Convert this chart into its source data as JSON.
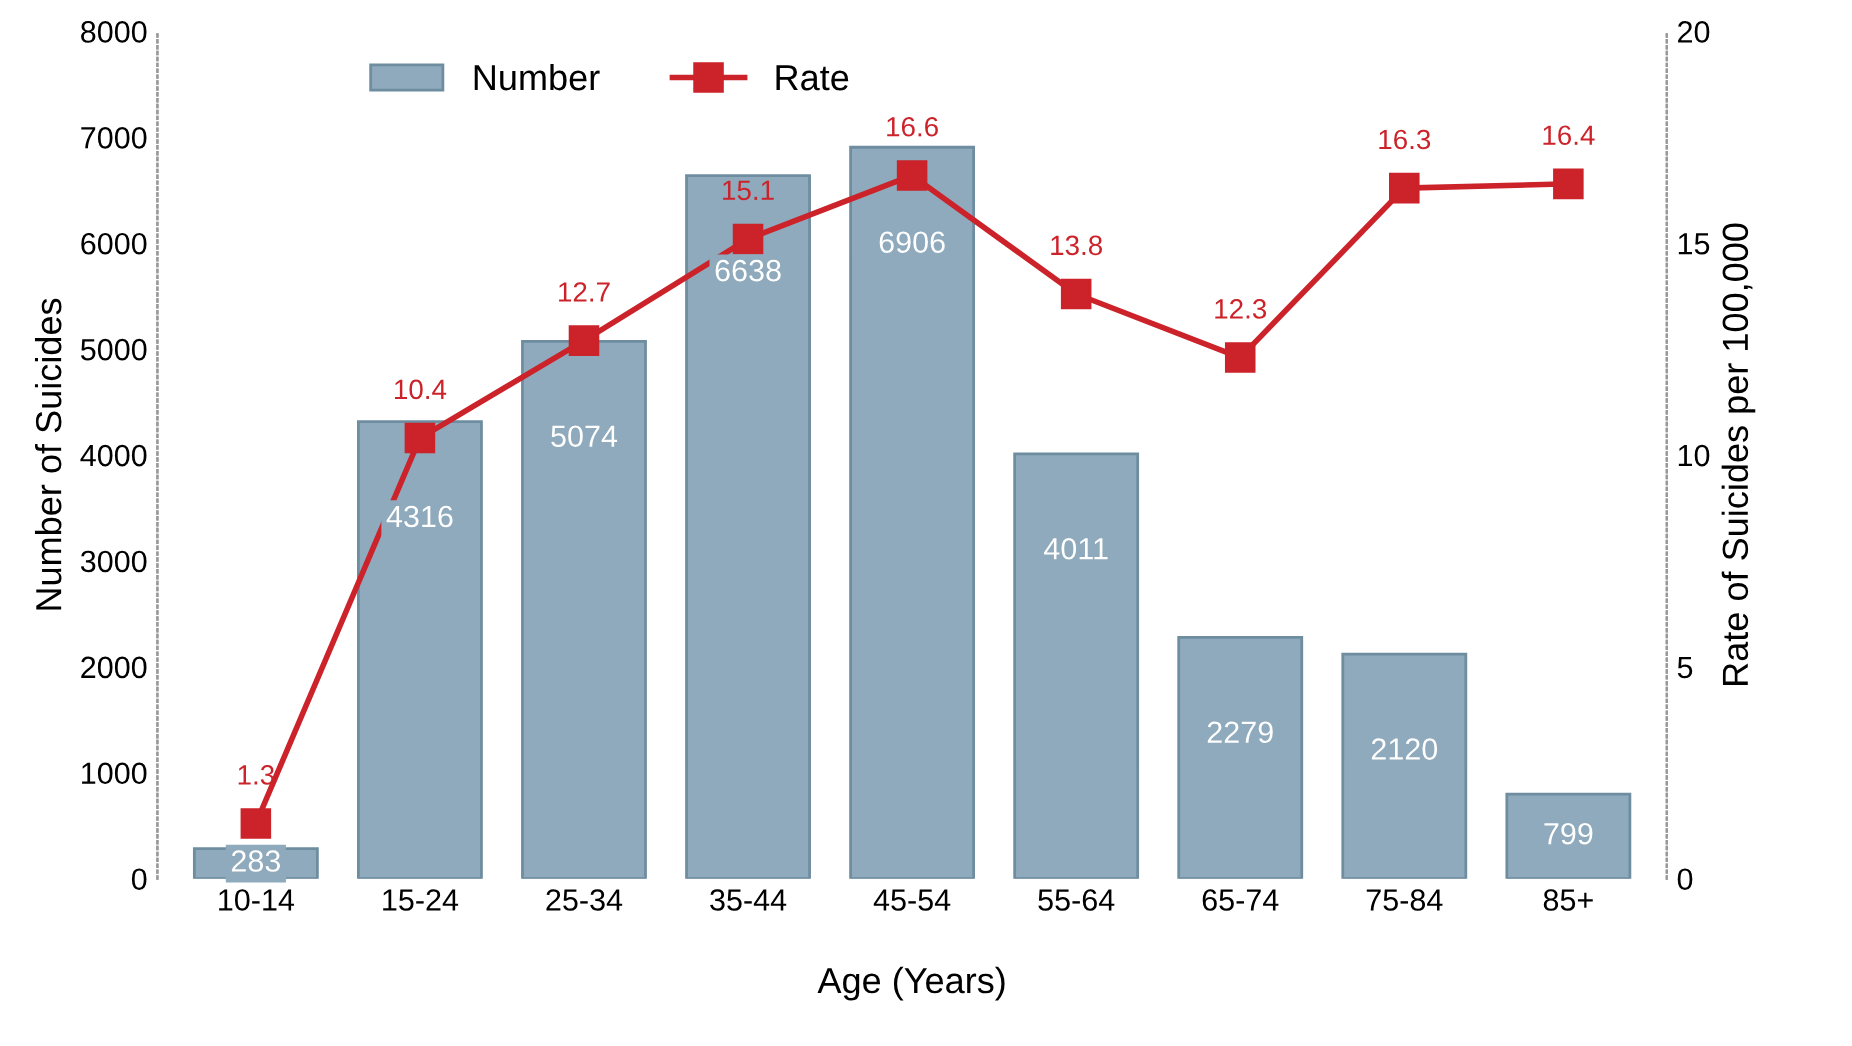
{
  "chart_data": {
    "type": "bar",
    "xlabel": "Age (Years)",
    "ylabel": "Number of Suicides",
    "y2label": "Rate of Suicides per 100,000",
    "categories": [
      "10-14",
      "15-24",
      "25-34",
      "35-44",
      "45-54",
      "55-64",
      "65-74",
      "75-84",
      "85+"
    ],
    "series": [
      {
        "name": "Number",
        "color": "#8eaabc",
        "values": [
          283,
          4316,
          5074,
          6638,
          6906,
          4011,
          2279,
          2120,
          799
        ]
      },
      {
        "name": "Rate",
        "type": "line",
        "axis": "y2",
        "color": "#cc2229",
        "values": [
          1.3,
          10.4,
          12.7,
          15.1,
          16.6,
          13.8,
          12.3,
          16.3,
          16.4
        ]
      }
    ],
    "ylim": [
      0,
      8000
    ],
    "yticks": [
      0,
      1000,
      2000,
      3000,
      4000,
      5000,
      6000,
      7000,
      8000
    ],
    "y2lim": [
      0,
      20
    ],
    "y2ticks": [
      0,
      5,
      10,
      15,
      20
    ],
    "data_labels": true,
    "marker": "square",
    "legend": "top",
    "grid": false
  }
}
